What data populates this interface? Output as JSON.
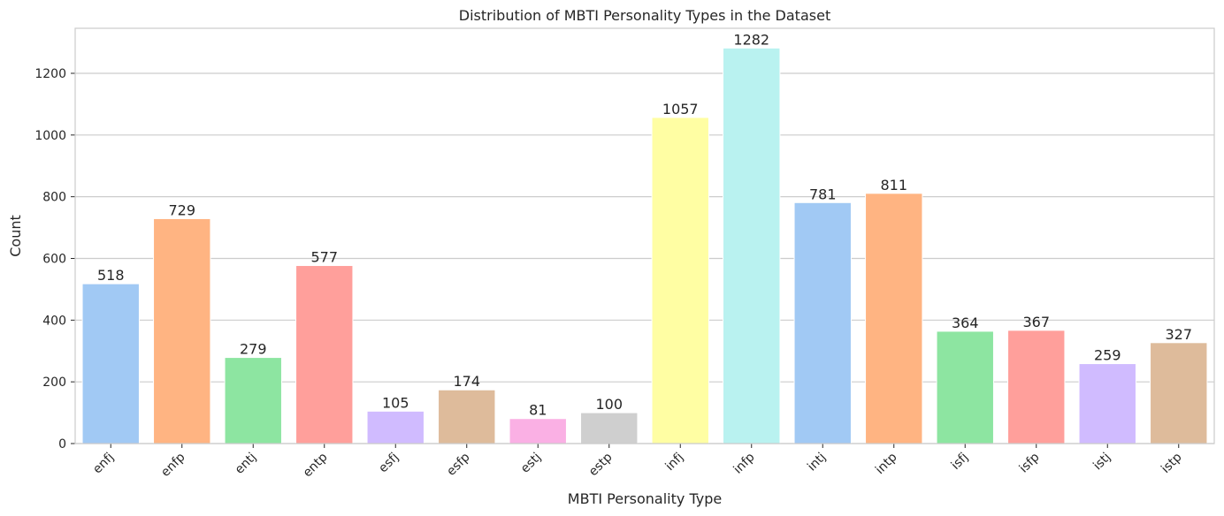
{
  "chart_data": {
    "type": "bar",
    "title": "Distribution of MBTI Personality Types in the Dataset",
    "xlabel": "MBTI Personality Type",
    "ylabel": "Count",
    "ylim": [
      0,
      1346
    ],
    "yticks": [
      0,
      200,
      400,
      600,
      800,
      1000,
      1200
    ],
    "grid": true,
    "categories": [
      "enfj",
      "enfp",
      "entj",
      "entp",
      "esfj",
      "esfp",
      "estj",
      "estp",
      "infj",
      "infp",
      "intj",
      "intp",
      "isfj",
      "isfp",
      "istj",
      "istp"
    ],
    "values": [
      518,
      729,
      279,
      577,
      105,
      174,
      81,
      100,
      1057,
      1282,
      781,
      811,
      364,
      367,
      259,
      327
    ],
    "colors": [
      "#a1c9f4",
      "#ffb482",
      "#8de5a1",
      "#ff9f9b",
      "#d0bbff",
      "#debb9b",
      "#fab0e4",
      "#cfcfcf",
      "#fffea3",
      "#b9f2f0",
      "#a1c9f4",
      "#ffb482",
      "#8de5a1",
      "#ff9f9b",
      "#d0bbff",
      "#debb9b"
    ]
  }
}
